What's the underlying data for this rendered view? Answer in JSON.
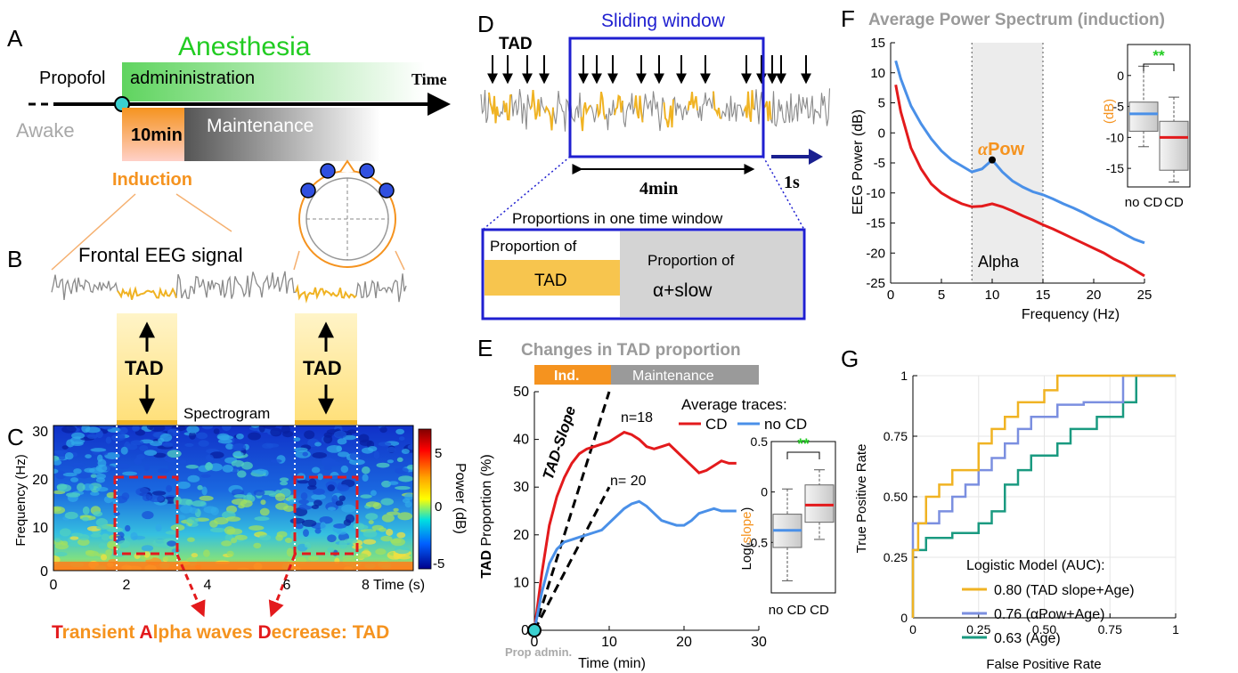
{
  "panels": {
    "A": {
      "letter": "A",
      "anesthesia": "Anesthesia",
      "propofol": "Propofol",
      "administration": "admininistration",
      "time": "Time",
      "awake": "Awake",
      "ten_min": "10min",
      "maintenance": "Maintenance",
      "induction": "Induction"
    },
    "B": {
      "letter": "B",
      "title": "Frontal EEG signal",
      "tad_label": "TAD"
    },
    "C": {
      "letter": "C",
      "spectrogram": "Spectrogram",
      "ylabel": "Frequency (Hz)",
      "yticks": [
        "30",
        "20",
        "10",
        "0"
      ],
      "xticks": [
        "0",
        "2",
        "4",
        "6",
        "8 Time (s)"
      ],
      "colorbar_ticks": [
        "5",
        "0",
        "-5"
      ],
      "colorbar_label": "Power (dB)",
      "caption": {
        "t1": "T",
        "r1": "ransient ",
        "t2": "A",
        "r2": "lpha waves ",
        "t3": "D",
        "r3": "ecrease: TAD"
      }
    },
    "D": {
      "letter": "D",
      "tad": "TAD",
      "sliding_window": "Sliding window",
      "four_min": "4min",
      "one_s": "1s",
      "proportions_title": "Proportions in one time window",
      "prop_of": "Proportion of",
      "tad_box": "TAD",
      "prop_of2": "Proportion of",
      "alpha_slow": "α+slow"
    },
    "E": {
      "letter": "E",
      "title": "Changes in TAD proportion",
      "ind": "Ind.",
      "maintenance": "Maintenance",
      "ylabel_tad": "TAD",
      "ylabel_rest": " Proportion (%)",
      "yticks": [
        "50",
        "40",
        "30",
        "20",
        "10",
        "0"
      ],
      "xticks": [
        "0",
        "10",
        "20",
        "30"
      ],
      "xlabel": "Time (min)",
      "prop_admin": "Prop admin.",
      "slope_label": "TAD-Slope",
      "n18": "n=18",
      "n20": "n= 20",
      "legend_title": "Average traces:",
      "legend_cd": "CD",
      "legend_nocd": "no CD",
      "inset_yticks": [
        "0.5",
        "0",
        "-0.5"
      ],
      "inset_ylabel_a": "Log(",
      "inset_ylabel_b": "slope",
      "inset_ylabel_c": ")",
      "inset_xticks": [
        "no CD",
        "CD"
      ],
      "sig": "**"
    },
    "F": {
      "letter": "F",
      "title": "Average Power Spectrum (induction)",
      "ylabel": "EEG Power (dB)",
      "xlabel": "Frequency (Hz)",
      "yticks": [
        "15",
        "10",
        "5",
        "0",
        "-5",
        "-10",
        "-15",
        "-20",
        "-25"
      ],
      "xticks": [
        "0",
        "5",
        "10",
        "15",
        "20",
        "25"
      ],
      "alpha": "Alpha",
      "alpha_pow_a": "α",
      "alpha_pow_b": "Pow",
      "inset_yticks": [
        "0",
        "-5",
        "-10",
        "-15"
      ],
      "inset_ylabel": "(dB)",
      "inset_xticks": [
        "no CD",
        "CD"
      ],
      "sig": "**"
    },
    "G": {
      "letter": "G",
      "ylabel": "True Positive Rate",
      "xlabel": "False Positive Rate",
      "yticks": [
        "1",
        "0.75",
        "0.50",
        "0.25",
        "0"
      ],
      "xticks": [
        "0",
        "0.25",
        "0.50",
        "0.75",
        "1"
      ],
      "legend_title": "Logistic Model (AUC):",
      "legend": [
        "0.80 (TAD slope+Age)",
        "0.76 (αPow+Age)",
        "0.63 (Age)"
      ]
    }
  },
  "colors": {
    "green": "#22cc22",
    "orange": "#f5931f",
    "yellow": "#f0b323",
    "blue": "#1f1fd0",
    "red": "#e31a1c",
    "lightblue": "#4a90e8",
    "teal": "#1a9a80",
    "gray": "#999999"
  },
  "chart_data": [
    {
      "type": "line",
      "panel": "E",
      "xlabel": "Time (min)",
      "ylabel": "TAD Proportion (%)",
      "xlim": [
        0,
        30
      ],
      "ylim": [
        0,
        50
      ],
      "series": [
        {
          "name": "CD",
          "x": [
            0,
            1,
            2,
            3,
            4,
            5,
            6,
            7,
            8,
            9,
            10,
            11,
            12,
            13,
            14,
            15,
            16,
            17,
            18,
            19,
            20,
            21,
            22,
            23,
            24,
            25,
            26,
            27
          ],
          "y": [
            0,
            12,
            22,
            28,
            32,
            35,
            37,
            38,
            38.5,
            39,
            39.5,
            40.5,
            41.5,
            41,
            40,
            38.5,
            38,
            38.5,
            39,
            37.5,
            36,
            34.5,
            33,
            33.5,
            34.5,
            35.5,
            35,
            35
          ]
        },
        {
          "name": "no CD",
          "x": [
            0,
            1,
            2,
            3,
            4,
            5,
            6,
            7,
            8,
            9,
            10,
            11,
            12,
            13,
            14,
            15,
            16,
            17,
            18,
            19,
            20,
            21,
            22,
            23,
            24,
            25,
            26,
            27
          ],
          "y": [
            0,
            8,
            14,
            17,
            18.5,
            19,
            19.5,
            20,
            20.5,
            21,
            22.5,
            24,
            25.5,
            26.5,
            27,
            26,
            24.5,
            23,
            22.5,
            22,
            22,
            23,
            24.5,
            25,
            25.5,
            25,
            25,
            25
          ]
        }
      ]
    },
    {
      "type": "line",
      "panel": "F",
      "xlabel": "Frequency (Hz)",
      "ylabel": "EEG Power (dB)",
      "xlim": [
        0,
        25
      ],
      "ylim": [
        -25,
        15
      ],
      "series": [
        {
          "name": "no CD",
          "x": [
            0.5,
            1,
            2,
            3,
            4,
            5,
            6,
            7,
            8,
            9,
            10,
            11,
            12,
            13,
            14,
            15,
            16,
            17,
            18,
            19,
            20,
            21,
            22,
            23,
            24,
            25
          ],
          "y": [
            12,
            9,
            4.5,
            1.5,
            -1,
            -3,
            -4.5,
            -5.5,
            -6.5,
            -6,
            -4.5,
            -6.5,
            -8,
            -9,
            -9.8,
            -10.3,
            -11,
            -11.8,
            -12.5,
            -13.3,
            -14.2,
            -15,
            -15.8,
            -16.8,
            -17.7,
            -18.3
          ]
        },
        {
          "name": "CD",
          "x": [
            0.5,
            1,
            2,
            3,
            4,
            5,
            6,
            7,
            8,
            9,
            10,
            11,
            12,
            13,
            14,
            15,
            16,
            17,
            18,
            19,
            20,
            21,
            22,
            23,
            24,
            25
          ],
          "y": [
            8,
            3.5,
            -2.5,
            -6,
            -8.5,
            -10,
            -11,
            -11.8,
            -12.3,
            -12.2,
            -11.8,
            -12.3,
            -13,
            -13.8,
            -14.5,
            -15.3,
            -16,
            -16.8,
            -17.6,
            -18.4,
            -19.2,
            -20,
            -21,
            -21.8,
            -22.8,
            -23.8
          ]
        }
      ]
    },
    {
      "type": "line",
      "panel": "G",
      "xlabel": "False Positive Rate",
      "ylabel": "True Positive Rate",
      "xlim": [
        0,
        1
      ],
      "ylim": [
        0,
        1
      ],
      "series": [
        {
          "name": "0.80 (TAD slope+Age)",
          "x": [
            0,
            0,
            0.02,
            0.02,
            0.05,
            0.05,
            0.1,
            0.1,
            0.15,
            0.15,
            0.25,
            0.25,
            0.3,
            0.3,
            0.35,
            0.35,
            0.4,
            0.4,
            0.5,
            0.5,
            0.55,
            0.55,
            0.65,
            0.65,
            0.75,
            0.75,
            1
          ],
          "y": [
            0,
            0.28,
            0.28,
            0.39,
            0.39,
            0.5,
            0.5,
            0.55,
            0.55,
            0.61,
            0.61,
            0.72,
            0.72,
            0.78,
            0.78,
            0.83,
            0.83,
            0.89,
            0.89,
            0.94,
            0.94,
            1,
            1,
            1,
            1,
            1,
            1
          ]
        },
        {
          "name": "0.76 (αPow+Age)",
          "x": [
            0,
            0,
            0.1,
            0.1,
            0.15,
            0.15,
            0.2,
            0.2,
            0.25,
            0.25,
            0.3,
            0.3,
            0.35,
            0.35,
            0.4,
            0.4,
            0.45,
            0.45,
            0.55,
            0.55,
            0.65,
            0.65,
            0.8,
            0.8,
            0.85,
            0.85,
            1
          ],
          "y": [
            0,
            0.39,
            0.39,
            0.44,
            0.44,
            0.5,
            0.5,
            0.55,
            0.55,
            0.61,
            0.61,
            0.66,
            0.66,
            0.72,
            0.72,
            0.78,
            0.78,
            0.83,
            0.83,
            0.88,
            0.88,
            0.89,
            0.89,
            1,
            1,
            1,
            1
          ]
        },
        {
          "name": "0.63 (Age)",
          "x": [
            0,
            0,
            0.05,
            0.05,
            0.15,
            0.15,
            0.25,
            0.25,
            0.3,
            0.3,
            0.35,
            0.35,
            0.4,
            0.4,
            0.45,
            0.45,
            0.55,
            0.55,
            0.6,
            0.6,
            0.7,
            0.7,
            0.8,
            0.8,
            0.85,
            0.85,
            1
          ],
          "y": [
            0,
            0.28,
            0.28,
            0.33,
            0.33,
            0.35,
            0.35,
            0.39,
            0.39,
            0.44,
            0.44,
            0.55,
            0.55,
            0.61,
            0.61,
            0.67,
            0.67,
            0.72,
            0.72,
            0.78,
            0.78,
            0.83,
            0.83,
            0.89,
            0.89,
            1,
            1
          ]
        }
      ]
    },
    {
      "type": "box",
      "panel": "E-inset",
      "ylabel": "Log(slope)",
      "ylim": [
        -1,
        0.5
      ],
      "categories": [
        "no CD",
        "CD"
      ],
      "boxes": [
        {
          "min": -0.88,
          "q1": -0.55,
          "median": -0.38,
          "q3": -0.22,
          "max": 0.03
        },
        {
          "min": -0.47,
          "q1": -0.3,
          "median": -0.13,
          "q3": 0.07,
          "max": 0.22
        }
      ]
    },
    {
      "type": "box",
      "panel": "F-inset",
      "ylabel": "(dB)",
      "ylim": [
        -18,
        5
      ],
      "categories": [
        "no CD",
        "CD"
      ],
      "boxes": [
        {
          "min": -11.5,
          "q1": -9,
          "median": -6.2,
          "q3": -4.3,
          "max": 1.5
        },
        {
          "min": -17.2,
          "q1": -15.3,
          "median": -10,
          "q3": -7.4,
          "max": -3.5
        }
      ]
    }
  ]
}
